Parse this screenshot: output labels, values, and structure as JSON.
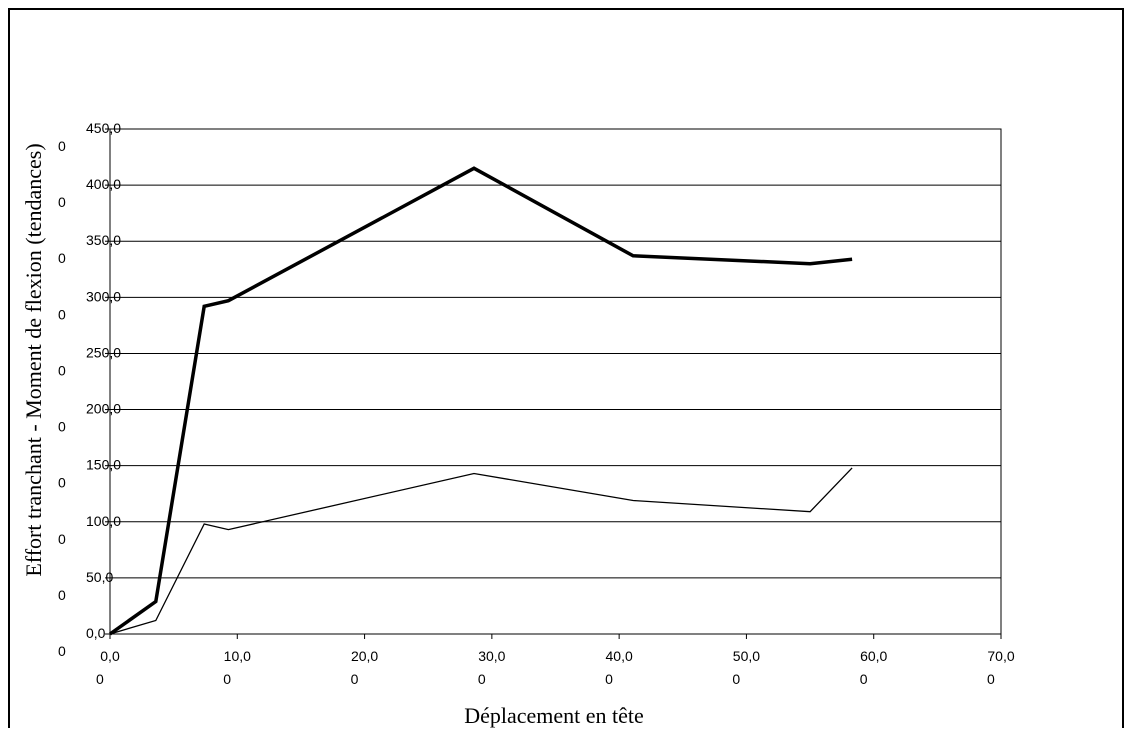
{
  "chart_data": {
    "type": "line",
    "xlabel": "Déplacement en tête",
    "ylabel": "Effort tranchant - Moment de flexion (tendances)",
    "xlim": [
      0,
      70
    ],
    "ylim": [
      0,
      450
    ],
    "grid": "horizontal",
    "x_ticks": [
      {
        "line1": "0,0",
        "line2": "0"
      },
      {
        "line1": "10,0",
        "line2": "0"
      },
      {
        "line1": "20,0",
        "line2": "0"
      },
      {
        "line1": "30,0",
        "line2": "0"
      },
      {
        "line1": "40,0",
        "line2": "0"
      },
      {
        "line1": "50,0",
        "line2": "0"
      },
      {
        "line1": "60,0",
        "line2": "0"
      },
      {
        "line1": "70,0",
        "line2": "0"
      }
    ],
    "x_tick_values": [
      0,
      10,
      20,
      30,
      40,
      50,
      60,
      70
    ],
    "y_ticks": [
      {
        "line1": "0,0",
        "line2": "0"
      },
      {
        "line1": "50,0",
        "line2": "0"
      },
      {
        "line1": "100,0",
        "line2": "0"
      },
      {
        "line1": "150,0",
        "line2": "0"
      },
      {
        "line1": "200,0",
        "line2": "0"
      },
      {
        "line1": "250,0",
        "line2": "0"
      },
      {
        "line1": "300,0",
        "line2": "0"
      },
      {
        "line1": "350,0",
        "line2": "0"
      },
      {
        "line1": "400,0",
        "line2": "0"
      },
      {
        "line1": "450,0",
        "line2": "0"
      }
    ],
    "y_tick_values": [
      0,
      50,
      100,
      150,
      200,
      250,
      300,
      350,
      400,
      450
    ],
    "series": [
      {
        "style": "thick",
        "color": "#000000",
        "points": [
          [
            0,
            0
          ],
          [
            3.6,
            29
          ],
          [
            7.4,
            292
          ],
          [
            9.3,
            297
          ],
          [
            28.6,
            415
          ],
          [
            41.1,
            337
          ],
          [
            55.0,
            330
          ],
          [
            58.3,
            334
          ]
        ]
      },
      {
        "style": "thin",
        "color": "#000000",
        "points": [
          [
            0,
            0
          ],
          [
            3.6,
            12
          ],
          [
            7.4,
            98
          ],
          [
            9.3,
            93
          ],
          [
            28.6,
            143
          ],
          [
            41.1,
            119
          ],
          [
            55.0,
            109
          ],
          [
            58.3,
            148
          ]
        ]
      }
    ]
  }
}
